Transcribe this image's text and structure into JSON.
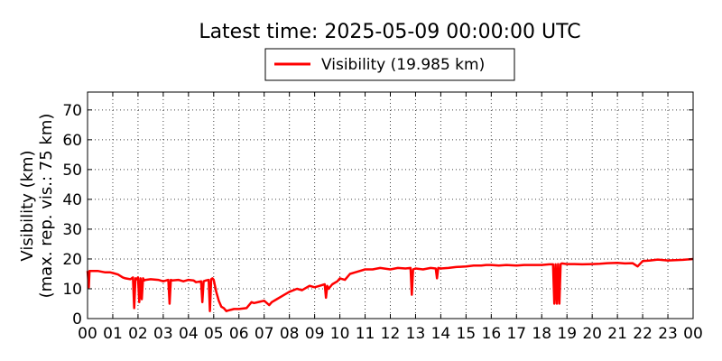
{
  "chart_data": {
    "type": "line",
    "title": "Latest time: 2025-05-09 00:00:00 UTC",
    "xlabel": "",
    "ylabel": [
      "Visibility (km)",
      "(max. rep. vis.: 75 km)"
    ],
    "ylim": [
      0,
      76
    ],
    "yticks": [
      0,
      10,
      20,
      30,
      40,
      50,
      60,
      70
    ],
    "xlim": [
      0,
      24
    ],
    "xticks": [
      0,
      1,
      2,
      3,
      4,
      5,
      6,
      7,
      8,
      9,
      10,
      11,
      12,
      13,
      14,
      15,
      16,
      17,
      18,
      19,
      20,
      21,
      22,
      23,
      24
    ],
    "xtick_labels": [
      "00",
      "01",
      "02",
      "03",
      "04",
      "05",
      "06",
      "07",
      "08",
      "09",
      "10",
      "11",
      "12",
      "13",
      "14",
      "15",
      "16",
      "17",
      "18",
      "19",
      "20",
      "21",
      "22",
      "23",
      "00"
    ],
    "grid": true,
    "legend_position": "top-center",
    "series": [
      {
        "name": "Visibility (19.985 km)",
        "color": "#ff0000",
        "x": [
          0,
          0.05,
          0.08,
          0.12,
          0.4,
          0.7,
          0.9,
          1.0,
          1.2,
          1.4,
          1.5,
          1.7,
          1.8,
          1.85,
          1.9,
          1.95,
          2.0,
          2.05,
          2.1,
          2.15,
          2.2,
          2.25,
          2.3,
          2.5,
          2.8,
          3.0,
          3.2,
          3.25,
          3.3,
          3.35,
          3.6,
          3.8,
          4.0,
          4.2,
          4.3,
          4.5,
          4.55,
          4.6,
          4.7,
          4.8,
          4.85,
          4.9,
          4.95,
          5.0,
          5.1,
          5.2,
          5.3,
          5.4,
          5.5,
          5.6,
          5.7,
          5.8,
          6.0,
          6.3,
          6.5,
          6.6,
          6.8,
          7.0,
          7.2,
          7.3,
          7.5,
          7.8,
          8.0,
          8.3,
          8.5,
          8.8,
          9.0,
          9.2,
          9.4,
          9.45,
          9.5,
          9.55,
          9.7,
          9.9,
          10.0,
          10.2,
          10.4,
          10.6,
          10.8,
          11.0,
          11.3,
          11.6,
          12.0,
          12.3,
          12.6,
          12.8,
          12.85,
          12.9,
          13.0,
          13.3,
          13.6,
          13.8,
          13.85,
          13.9,
          14.0,
          14.3,
          14.6,
          15.0,
          15.3,
          15.6,
          15.8,
          16.0,
          16.3,
          16.6,
          17.0,
          17.3,
          17.6,
          18.0,
          18.3,
          18.45,
          18.5,
          18.55,
          18.6,
          18.65,
          18.7,
          18.75,
          18.8,
          19.0,
          19.3,
          19.6,
          20.0,
          20.3,
          20.6,
          21.0,
          21.3,
          21.6,
          21.8,
          22.0,
          22.3,
          22.6,
          23.0,
          23.3,
          23.6,
          24.0
        ],
        "y": [
          16,
          10.5,
          16,
          16,
          16,
          15.5,
          15.5,
          15.3,
          14.8,
          13.8,
          13.5,
          13.2,
          13.8,
          3.5,
          13.5,
          13.2,
          13.8,
          5.5,
          13.5,
          6.5,
          13.5,
          12.8,
          13.0,
          13.2,
          13.0,
          12.5,
          13.0,
          5.0,
          13.0,
          12.8,
          13.0,
          12.5,
          13.0,
          12.8,
          12.2,
          12.5,
          5.5,
          12.5,
          12.8,
          13.0,
          2.5,
          13.2,
          13.5,
          13.0,
          9.0,
          6.0,
          4.0,
          3.5,
          2.5,
          2.8,
          3.0,
          3.2,
          3.2,
          3.5,
          5.5,
          5.2,
          5.6,
          6.0,
          4.5,
          5.5,
          6.5,
          8.0,
          9.0,
          10.0,
          9.5,
          11.0,
          10.5,
          11.0,
          11.5,
          7.0,
          11.0,
          10.0,
          11.5,
          12.5,
          13.5,
          13.0,
          15.0,
          15.5,
          16.0,
          16.5,
          16.5,
          17.0,
          16.5,
          17.0,
          16.8,
          17.0,
          8.0,
          16.5,
          16.8,
          16.5,
          17.0,
          16.8,
          13.5,
          17.0,
          16.8,
          17.0,
          17.3,
          17.5,
          17.8,
          17.8,
          18.0,
          18.0,
          17.8,
          18.0,
          17.8,
          18.0,
          18.0,
          18.0,
          18.2,
          18.2,
          5.0,
          18.2,
          5.0,
          18.3,
          5.0,
          18.3,
          18.5,
          18.3,
          18.3,
          18.2,
          18.3,
          18.4,
          18.6,
          18.7,
          18.5,
          18.6,
          17.5,
          19.3,
          19.5,
          19.8,
          19.5,
          19.6,
          19.7,
          19.985
        ]
      }
    ]
  },
  "style": {
    "line_color": "#ff0000",
    "axis_color": "#000000",
    "background": "#ffffff"
  }
}
